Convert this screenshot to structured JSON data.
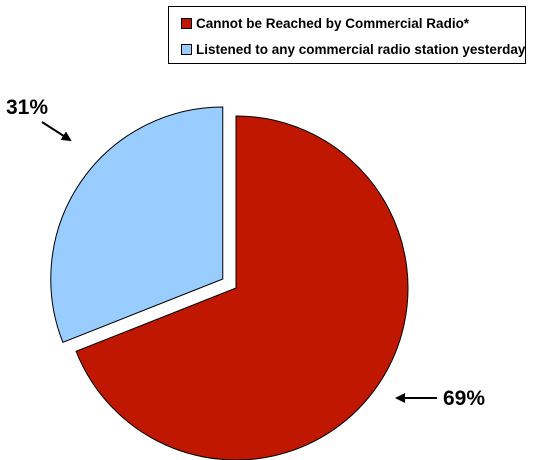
{
  "chart_data": {
    "type": "pie",
    "slices": [
      {
        "label": "Cannot be Reached by Commercial Radio*",
        "value": 69,
        "data_label": "69%",
        "color": "#C01800",
        "exploded": false
      },
      {
        "label": "Listened to any commercial radio station yesterday",
        "value": 31,
        "data_label": "31%",
        "color": "#99CCFF",
        "exploded": true
      }
    ],
    "legend": {
      "placement": "top-right",
      "entries": [
        "Cannot be Reached by Commercial Radio*",
        "Listened to any commercial radio station yesterday"
      ]
    },
    "title": ""
  }
}
